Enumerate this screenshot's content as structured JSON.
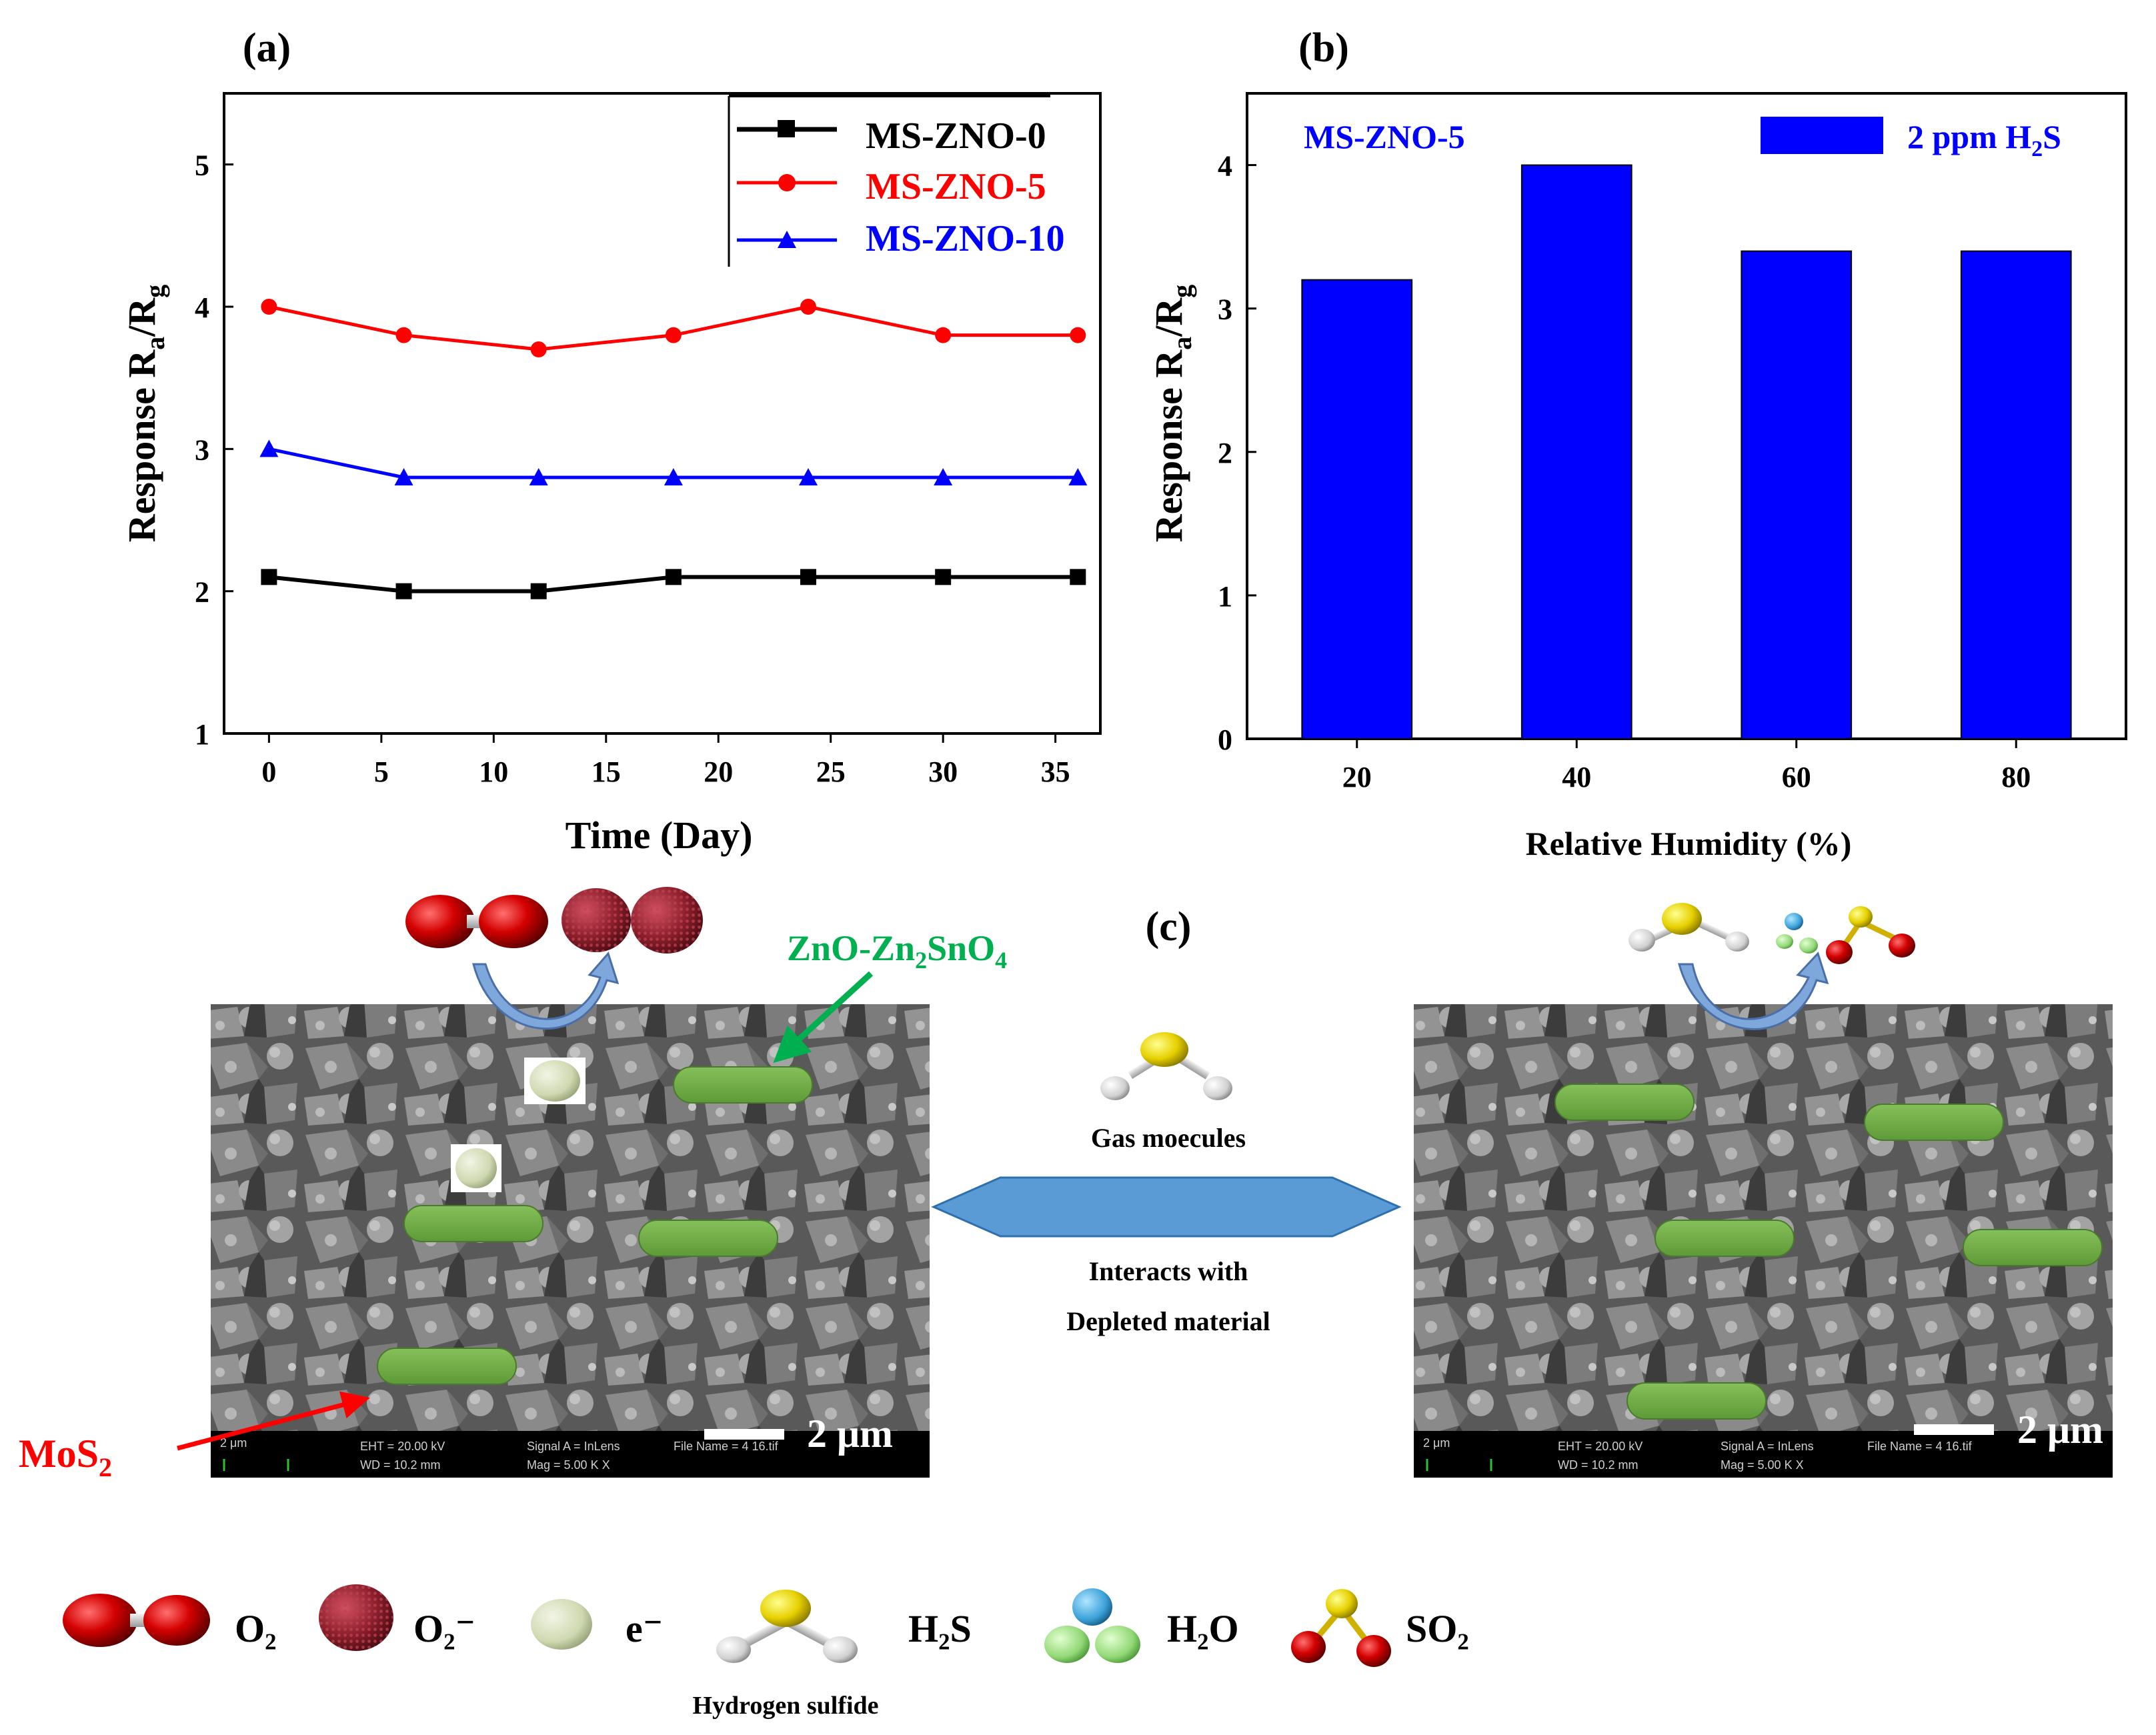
{
  "chart_data": [
    {
      "panel": "(a)",
      "type": "line",
      "title": "",
      "xlabel": "Time (Day)",
      "ylabel": "Response R_a/R_g",
      "ylabel_main": "Response R",
      "ylabel_sub_a": "a",
      "ylabel_slash": "/R",
      "ylabel_sub_g": "g",
      "xlim": [
        -2,
        37
      ],
      "ylim": [
        1,
        5.5
      ],
      "x": [
        0,
        6,
        12,
        18,
        24,
        30,
        36
      ],
      "xticks": [
        0,
        5,
        10,
        15,
        20,
        25,
        30,
        35
      ],
      "yticks": [
        1,
        2,
        3,
        4,
        5
      ],
      "legend_position": "top-right",
      "series": [
        {
          "name": "MS-ZNO-0",
          "color": "#000000",
          "marker": "square",
          "values": [
            2.1,
            2.0,
            2.0,
            2.1,
            2.1,
            2.1,
            2.1
          ]
        },
        {
          "name": "MS-ZNO-5",
          "color": "#ff0000",
          "marker": "circle",
          "values": [
            4.0,
            3.8,
            3.7,
            3.8,
            4.0,
            3.8,
            3.8
          ]
        },
        {
          "name": "MS-ZNO-10",
          "color": "#0000ff",
          "marker": "triangle",
          "values": [
            3.0,
            2.8,
            2.8,
            2.8,
            2.8,
            2.8,
            2.8
          ]
        }
      ]
    },
    {
      "panel": "(b)",
      "type": "bar",
      "title": "",
      "xlabel": "Relative Humidity (%)",
      "ylabel": "Response R_a/R_g",
      "ylabel_main": "Response R",
      "ylabel_sub_a": "a",
      "ylabel_slash": "/R",
      "ylabel_sub_g": "g",
      "categories": [
        "20",
        "40",
        "60",
        "80"
      ],
      "values": [
        3.2,
        4.0,
        3.4,
        3.4
      ],
      "ylim": [
        0,
        4.5
      ],
      "yticks": [
        0,
        1,
        2,
        3,
        4
      ],
      "color": "#0000ff",
      "annotation": "MS-ZNO-5",
      "legend_position": "top-right",
      "legend_entry": "2 ppm H2S",
      "legend_entry_main": "2 ppm H",
      "legend_entry_sub": "2",
      "legend_entry_tail": "S"
    }
  ],
  "schematic": {
    "panel": "(c)",
    "zno_label_main": "ZnO-Zn",
    "zno_label_sub1": "2",
    "zno_label_mid": "SnO",
    "zno_label_sub2": "4",
    "mos2_label_main": "MoS",
    "mos2_label_sub": "2",
    "gas_molecules": "Gas moecules",
    "interacts_line1": "Interacts with",
    "interacts_line2": "Depleted material",
    "scale_bar": "2 μm",
    "sem_info": {
      "c1": "2 μm",
      "eht": "EHT = 20.00 kV",
      "wd": "WD = 10.2 mm",
      "signal": "Signal A = InLens",
      "mag": "Mag =   5.00 K X",
      "file": "File Name = 4 16.tif"
    }
  },
  "legend": {
    "o2": "O₂",
    "o2minus": "O₂⁻",
    "electron": "e⁻",
    "h2s": "H₂S",
    "h2s_caption": "Hydrogen sulfide",
    "h2o": "H₂O",
    "so2": "SO₂"
  },
  "colors": {
    "black_series": "#000000",
    "red_series": "#ff0000",
    "blue_series": "#0000ff",
    "bar_fill": "#0000ff",
    "green_rod": "#70ad47",
    "arrow_fill": "#5b9bd5",
    "zno_label": "#00b050"
  }
}
